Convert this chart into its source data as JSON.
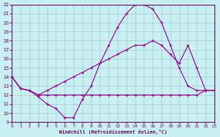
{
  "xlabel": "Windchill (Refroidissement éolien,°C)",
  "xlim": [
    0,
    23
  ],
  "ylim": [
    9,
    22
  ],
  "xticks": [
    0,
    1,
    2,
    3,
    4,
    5,
    6,
    7,
    8,
    9,
    10,
    11,
    12,
    13,
    14,
    15,
    16,
    17,
    18,
    19,
    20,
    21,
    22,
    23
  ],
  "yticks": [
    9,
    10,
    11,
    12,
    13,
    14,
    15,
    16,
    17,
    18,
    19,
    20,
    21,
    22
  ],
  "bg_color": "#c8f0f0",
  "line_color": "#990099",
  "grid_color": "#a0c8d8",
  "line1_x": [
    0,
    1,
    2,
    3,
    4,
    5,
    6,
    7,
    8,
    9,
    10,
    11,
    12,
    13,
    14,
    15,
    16,
    17,
    18,
    19,
    20,
    21,
    22,
    23
  ],
  "line1_y": [
    14.0,
    12.7,
    12.5,
    12.0,
    12.0,
    12.0,
    12.0,
    12.0,
    12.0,
    12.0,
    12.0,
    12.0,
    12.0,
    12.0,
    12.0,
    12.0,
    12.0,
    12.0,
    12.0,
    12.0,
    12.0,
    12.0,
    12.5,
    12.5
  ],
  "line2_x": [
    0,
    1,
    2,
    3,
    4,
    5,
    6,
    7,
    8,
    9,
    10,
    11,
    12,
    13,
    14,
    15,
    16,
    17,
    18,
    19,
    20,
    21,
    22
  ],
  "line2_y": [
    14.0,
    12.7,
    12.5,
    11.8,
    11.0,
    10.5,
    9.5,
    9.5,
    11.5,
    13.0,
    15.5,
    17.5,
    19.5,
    21.0,
    22.0,
    22.0,
    21.5,
    20.0,
    17.5,
    15.0,
    13.0,
    12.5,
    12.5
  ],
  "line3_x": [
    0,
    1,
    2,
    3,
    4,
    5,
    6,
    7,
    8,
    9,
    10,
    11,
    12,
    13,
    14,
    15,
    16,
    17,
    18,
    19,
    20,
    21,
    22,
    23
  ],
  "line3_y": [
    14.0,
    12.7,
    12.5,
    12.0,
    12.5,
    13.0,
    13.5,
    14.0,
    14.5,
    15.0,
    15.5,
    16.0,
    16.5,
    17.0,
    17.5,
    17.5,
    18.0,
    17.5,
    16.5,
    15.5,
    17.5,
    15.0,
    12.5,
    12.5
  ]
}
